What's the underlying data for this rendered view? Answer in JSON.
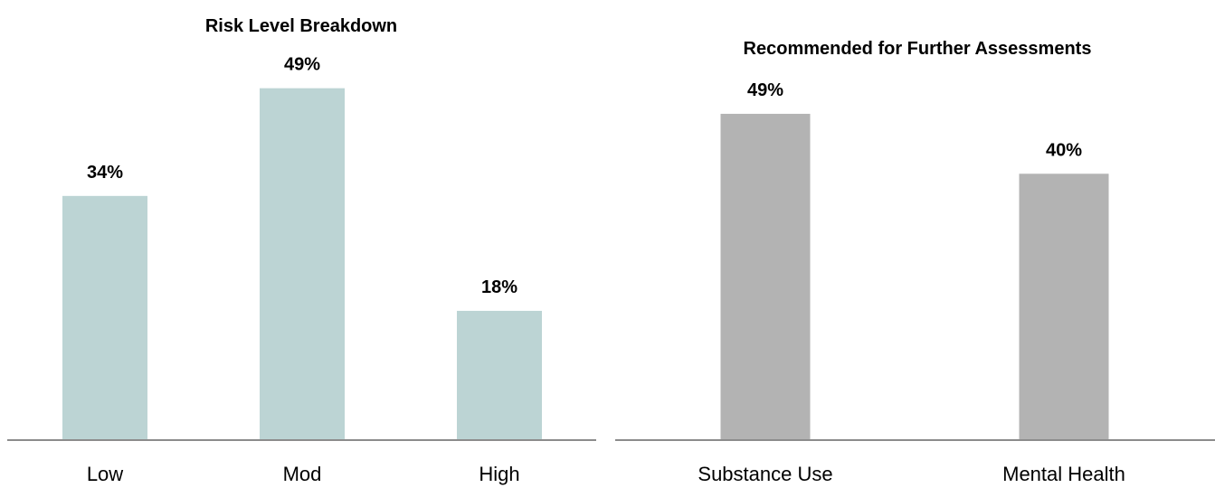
{
  "chart_data": [
    {
      "type": "bar",
      "title": "Risk Level Breakdown",
      "categories": [
        "Low",
        "Mod",
        "High"
      ],
      "values": [
        34,
        49,
        18
      ],
      "value_labels": [
        "34%",
        "49%",
        "18%"
      ],
      "unit": "%",
      "ylim": [
        0,
        56
      ],
      "bar_color": "#bcd4d4",
      "grid": false,
      "legend": "none"
    },
    {
      "type": "bar",
      "title": "Recommended for Further Assessments",
      "categories": [
        "Substance Use",
        "Mental Health"
      ],
      "values": [
        49,
        40
      ],
      "value_labels": [
        "49%",
        "40%"
      ],
      "unit": "%",
      "ylim": [
        0,
        57
      ],
      "bar_color": "#b3b3b3",
      "grid": false,
      "legend": "none"
    }
  ]
}
